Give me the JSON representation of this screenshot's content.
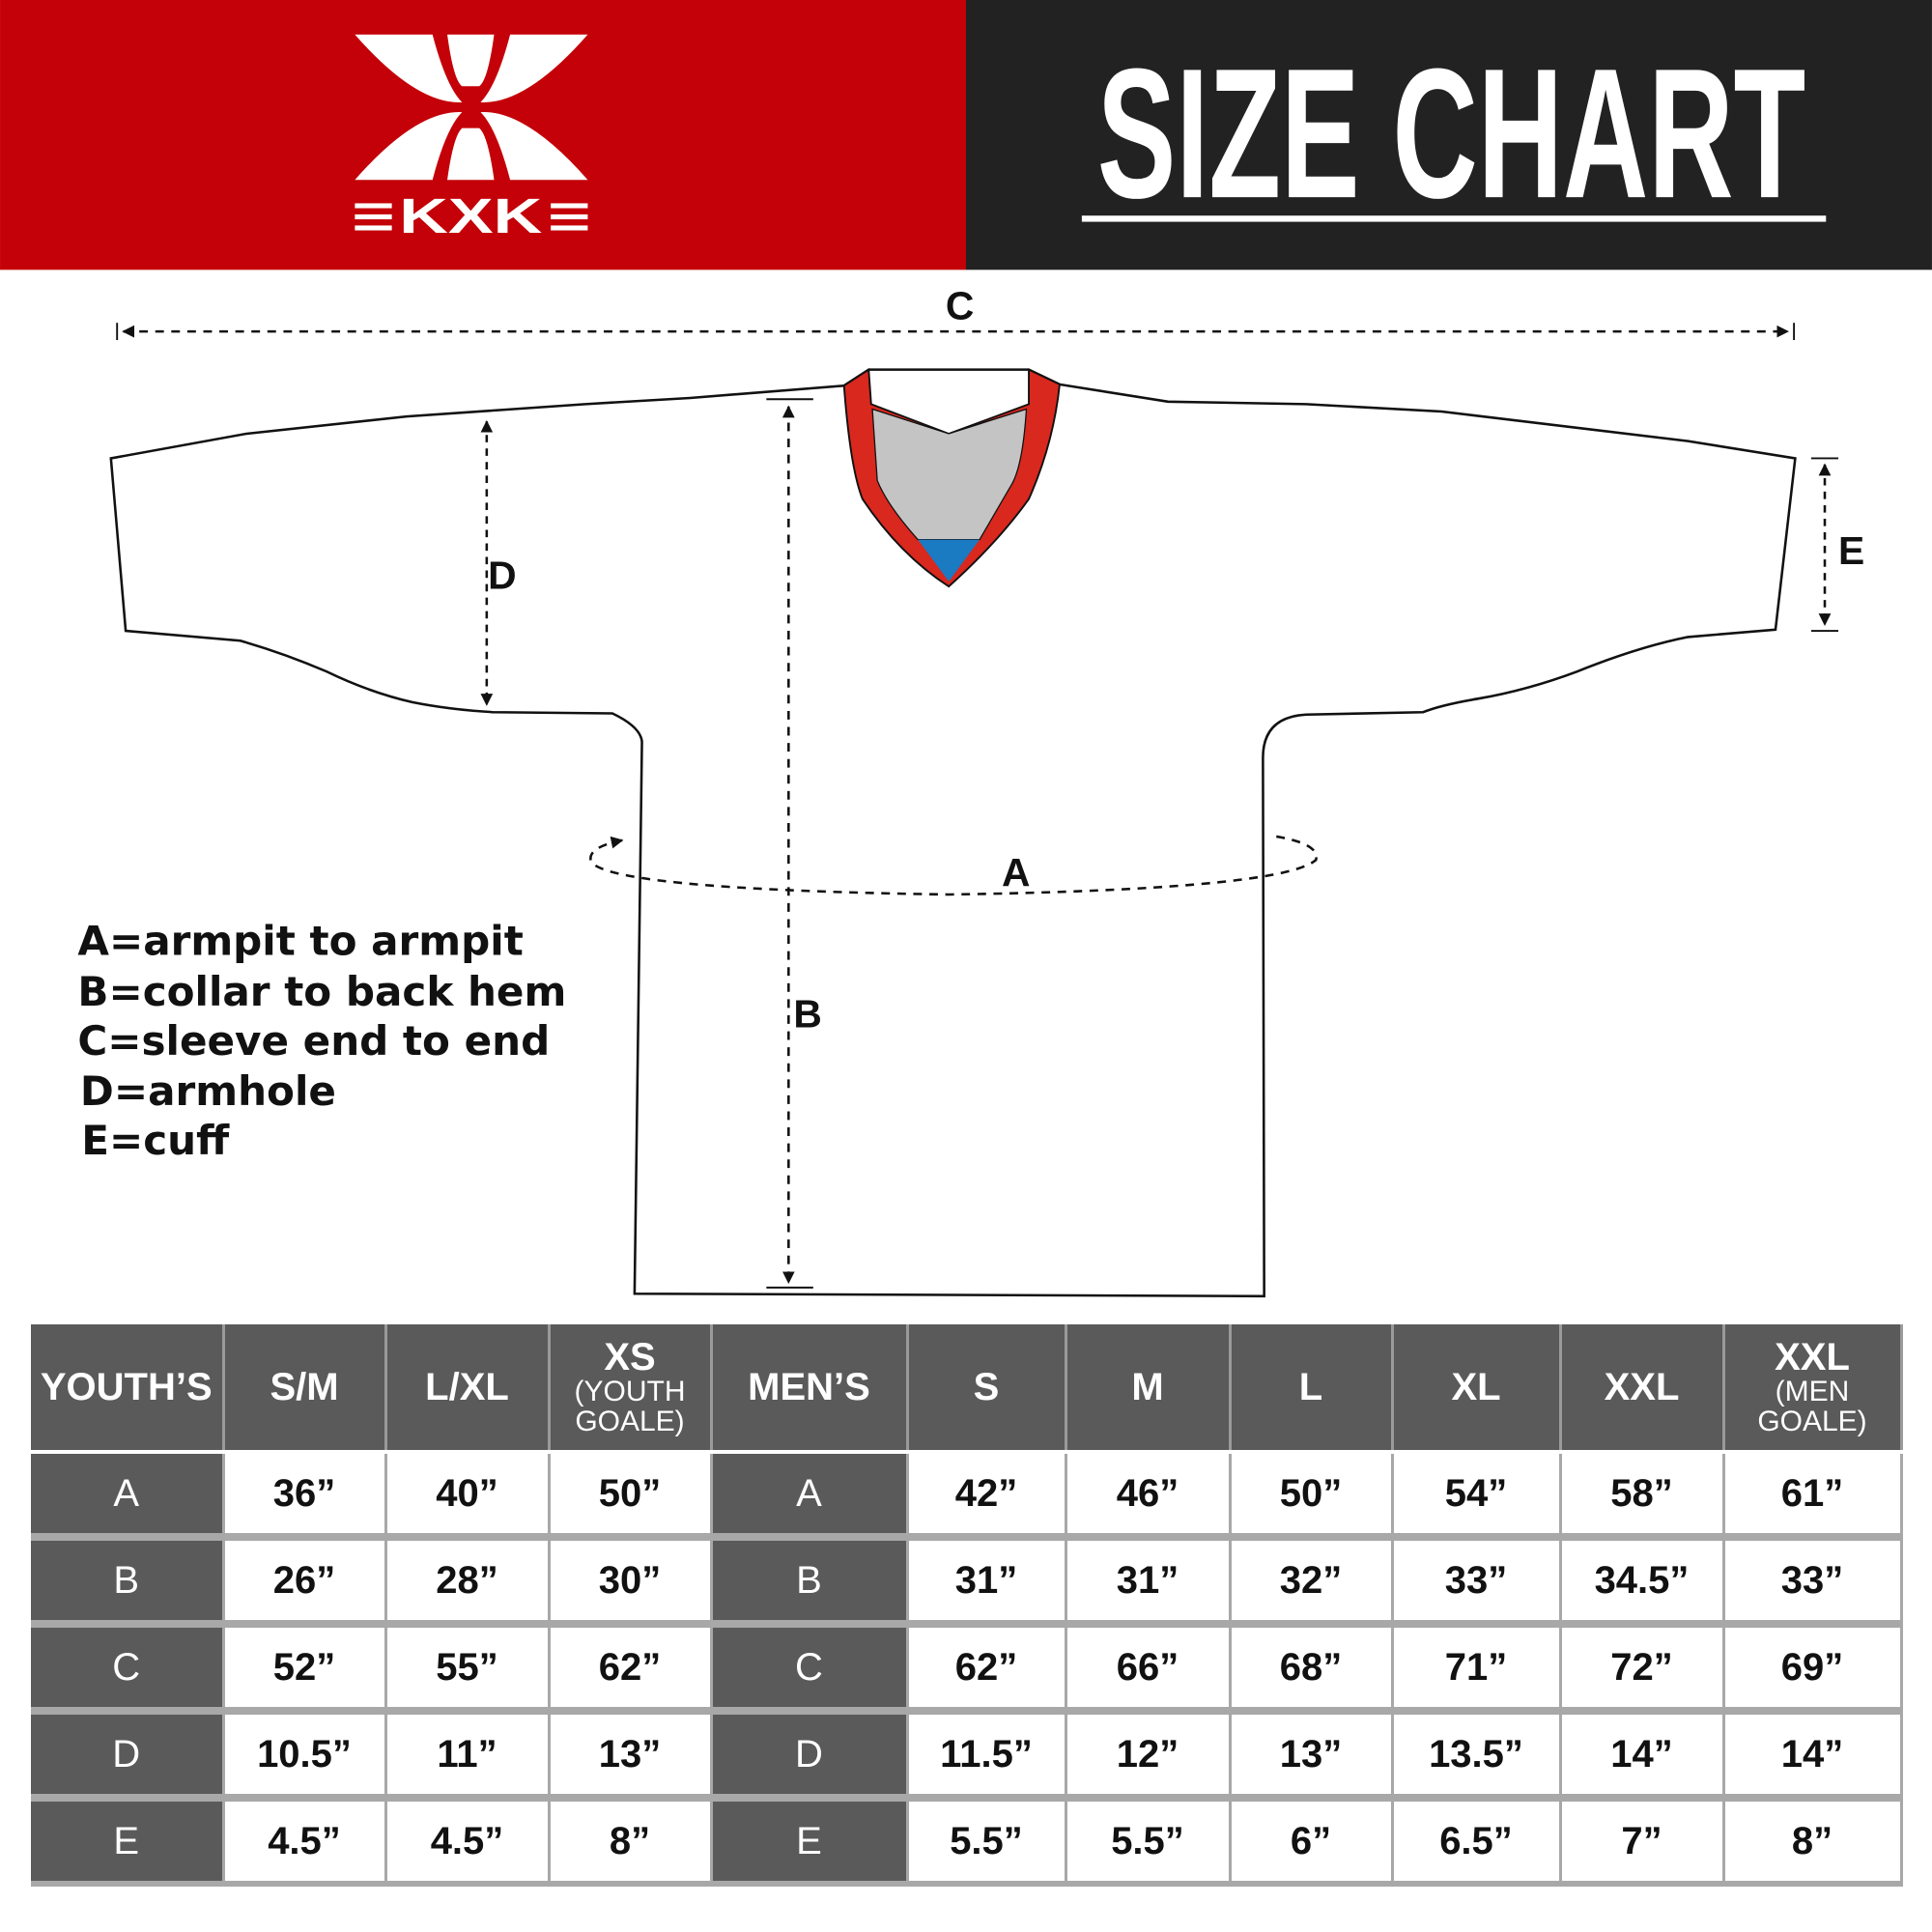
{
  "header": {
    "brand": "KXK",
    "title": "SIZE CHART",
    "colors": {
      "brand_red": "#c40008",
      "dark": "#222222",
      "collar_red": "#d9281e",
      "collar_gray": "#c4c4c4",
      "collar_blue": "#1a7ac2",
      "table_header": "#5a5a5a"
    }
  },
  "diagram": {
    "labels": {
      "a": "A",
      "b": "B",
      "c": "C",
      "d": "D",
      "e": "E"
    },
    "legend": [
      "A=armpit to armpit",
      "B=collar to back hem",
      "C=sleeve end to end",
      "D=armhole",
      "E=cuff"
    ]
  },
  "table": {
    "headers": [
      {
        "main": "YOUTH’S",
        "sub": ""
      },
      {
        "main": "S/M",
        "sub": ""
      },
      {
        "main": "L/XL",
        "sub": ""
      },
      {
        "main": "XS",
        "sub": "(YOUTH GOALE)"
      },
      {
        "main": "MEN’S",
        "sub": ""
      },
      {
        "main": "S",
        "sub": ""
      },
      {
        "main": "M",
        "sub": ""
      },
      {
        "main": "L",
        "sub": ""
      },
      {
        "main": "XL",
        "sub": ""
      },
      {
        "main": "XXL",
        "sub": ""
      },
      {
        "main": "XXL",
        "sub": "(MEN GOALE)"
      }
    ],
    "rows": [
      {
        "label": "A",
        "youth": [
          "36”",
          "40”",
          "50”"
        ],
        "men": [
          "42”",
          "46”",
          "50”",
          "54”",
          "58”",
          "61”"
        ]
      },
      {
        "label": "B",
        "youth": [
          "26”",
          "28”",
          "30”"
        ],
        "men": [
          "31”",
          "31”",
          "32”",
          "33”",
          "34.5”",
          "33”"
        ]
      },
      {
        "label": "C",
        "youth": [
          "52”",
          "55”",
          "62”"
        ],
        "men": [
          "62”",
          "66”",
          "68”",
          "71”",
          "72”",
          "69”"
        ]
      },
      {
        "label": "D",
        "youth": [
          "10.5”",
          "11”",
          "13”"
        ],
        "men": [
          "11.5”",
          "12”",
          "13”",
          "13.5”",
          "14”",
          "14”"
        ]
      },
      {
        "label": "E",
        "youth": [
          "4.5”",
          "4.5”",
          "8”"
        ],
        "men": [
          "5.5”",
          "5.5”",
          "6”",
          "6.5”",
          "7”",
          "8”"
        ]
      }
    ]
  }
}
